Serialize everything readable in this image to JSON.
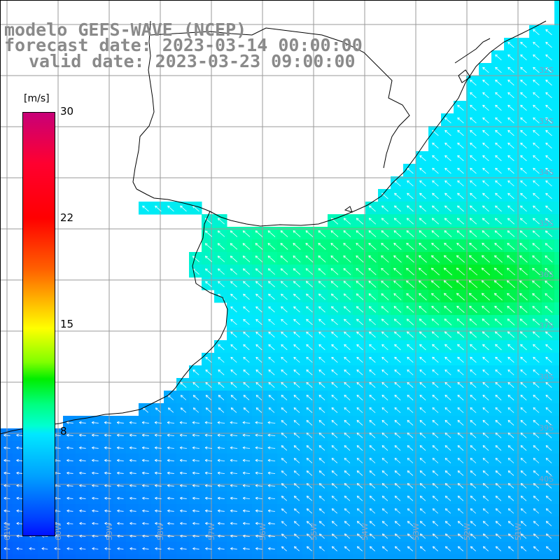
{
  "title": {
    "line1": "modelo GEFS-WAVE (NCEP)",
    "line2": "forecast date: 2023-03-14 00:00:00",
    "line3": "valid date: 2023-03-23 09:00:00"
  },
  "colorbar": {
    "unit": "[m/s]",
    "ticks": [
      "30",
      "22",
      "15",
      "8"
    ],
    "colors": [
      "#0010ff",
      "#0040ff",
      "#00a0ff",
      "#00e8ff",
      "#00ff80",
      "#00ee00",
      "#ffff00",
      "#ff6000",
      "#ff0000",
      "#c80078"
    ]
  },
  "lat_labels": [
    "32S",
    "33S",
    "34S",
    "35S",
    "36S",
    "37S",
    "38S",
    "39S",
    "40S"
  ],
  "lon_labels": [
    "61W",
    "60W",
    "59W",
    "58W",
    "57W",
    "56W",
    "55W",
    "54W",
    "53W",
    "52W",
    "51W"
  ],
  "map": {
    "land_color": "#ffffff",
    "grid_color": "#9a9a9a",
    "arrow_color": "#ffffff",
    "coast_color": "#000000",
    "field_description": "wind speed (m/s) with direction arrows"
  }
}
